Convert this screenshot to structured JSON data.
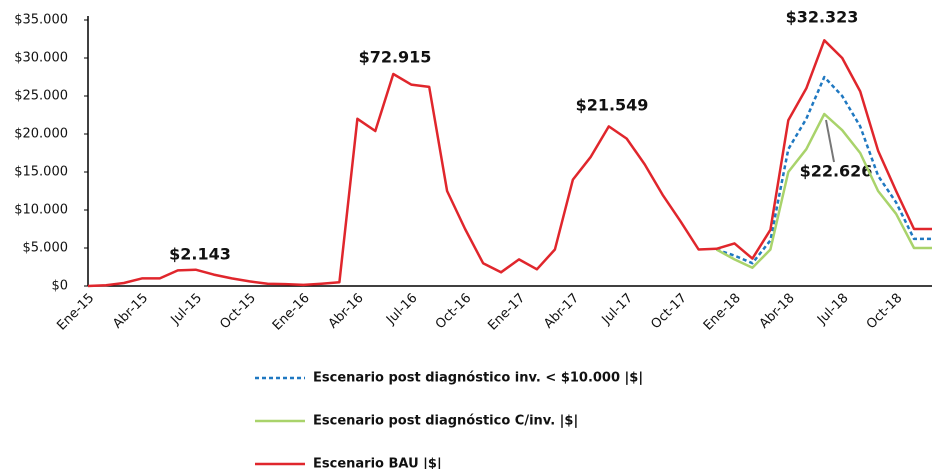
{
  "chart_data": {
    "type": "line",
    "categories": [
      "Ene-15",
      null,
      null,
      "Abr-15",
      null,
      null,
      "Jul-15",
      null,
      null,
      "Oct-15",
      null,
      null,
      "Ene-16",
      null,
      null,
      "Abr-16",
      null,
      null,
      "Jul-16",
      null,
      null,
      "Oct-16",
      null,
      null,
      "Ene-17",
      null,
      null,
      "Abr-17",
      null,
      null,
      "Jul-17",
      null,
      null,
      "Oct-17",
      null,
      null,
      "Ene-18",
      null,
      null,
      "Abr-18",
      null,
      null,
      "Jul-18",
      null,
      null,
      "Oct-18",
      null,
      null
    ],
    "series": [
      {
        "name": "Escenario post diagnóstico inv. < $10.000 |$|",
        "color": "#1f78c1",
        "dashed": true,
        "values": [
          null,
          null,
          null,
          null,
          null,
          null,
          null,
          null,
          null,
          null,
          null,
          null,
          null,
          null,
          null,
          null,
          null,
          null,
          null,
          null,
          null,
          null,
          null,
          null,
          null,
          null,
          null,
          null,
          null,
          null,
          null,
          null,
          null,
          null,
          null,
          4800,
          4000,
          3000,
          6000,
          18000,
          22000,
          27500,
          25000,
          21000,
          14500,
          11000,
          6200,
          6200
        ]
      },
      {
        "name": "Escenario post diagnóstico C/inv. |$|",
        "color": "#a9d36b",
        "dashed": false,
        "values": [
          null,
          null,
          null,
          null,
          null,
          null,
          null,
          null,
          null,
          null,
          null,
          null,
          null,
          null,
          null,
          null,
          null,
          null,
          null,
          null,
          null,
          null,
          null,
          null,
          null,
          null,
          null,
          null,
          null,
          null,
          null,
          null,
          null,
          null,
          null,
          4800,
          3500,
          2400,
          4800,
          15000,
          18000,
          22626,
          20500,
          17500,
          12500,
          9500,
          5000,
          5000
        ]
      },
      {
        "name": "Escenario BAU |$|",
        "color": "#e0262c",
        "dashed": false,
        "values": [
          0,
          100,
          400,
          1000,
          1000,
          2050,
          2143,
          1500,
          1000,
          600,
          300,
          250,
          150,
          300,
          500,
          22000,
          20400,
          27900,
          26500,
          26200,
          12500,
          7500,
          3000,
          1800,
          3500,
          2200,
          4800,
          14000,
          17000,
          21000,
          19400,
          16000,
          12000,
          8500,
          4800,
          4900,
          5600,
          3600,
          7400,
          21800,
          26000,
          32323,
          30000,
          25600,
          17800,
          12500,
          7500,
          7500
        ]
      }
    ],
    "annotations": [
      "$2.143",
      "$72.915",
      "$21.549",
      "$32.323",
      "$22.626"
    ],
    "ylim": [
      0,
      35000
    ],
    "yticks": [
      {
        "value": 0,
        "label": "$0"
      },
      {
        "value": 5000,
        "label": "$5.000"
      },
      {
        "value": 10000,
        "label": "$10.000"
      },
      {
        "value": 15000,
        "label": "$15.000"
      },
      {
        "value": 20000,
        "label": "$20.000"
      },
      {
        "value": 25000,
        "label": "$25.000"
      },
      {
        "value": 30000,
        "label": "$30.000"
      },
      {
        "value": 35000,
        "label": "$35.000"
      }
    ],
    "grid": false
  }
}
